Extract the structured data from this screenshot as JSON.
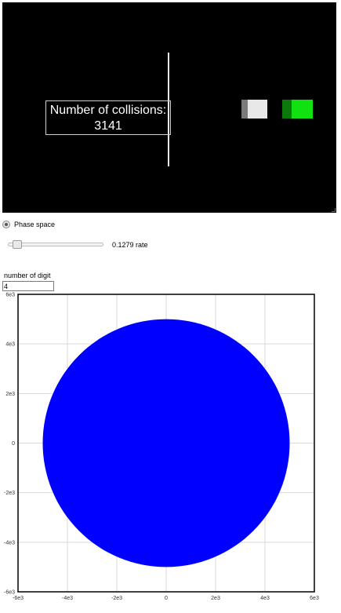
{
  "simulation": {
    "collision_label": "Number of collisions:",
    "collision_count": "3141",
    "small_block_color": "#e8e8e8",
    "big_block_color": "#11e011"
  },
  "controls": {
    "phase_space_label": "Phase space",
    "phase_space_selected": true,
    "rate_value": "0.1279",
    "rate_label": "rate",
    "rate_fraction": 0.05,
    "digit_label": "number of digit",
    "digit_value": "4"
  },
  "chart_data": {
    "type": "scatter",
    "title": "",
    "xlabel": "",
    "ylabel": "",
    "xlim": [
      -6000,
      6000
    ],
    "ylim": [
      -6000,
      6000
    ],
    "xticks": [
      "-6e3",
      "-4e3",
      "-2e3",
      "0",
      "2e3",
      "4e3",
      "6e3"
    ],
    "yticks": [
      "6e3",
      "4e3",
      "2e3",
      "0",
      "-2e3",
      "-4e3",
      "-6e3"
    ],
    "grid": true,
    "series": [
      {
        "shape": "filled-ellipse",
        "center": [
          0,
          0
        ],
        "radius_x": 5000,
        "radius_y": 5000,
        "color": "#0000ff"
      }
    ]
  }
}
